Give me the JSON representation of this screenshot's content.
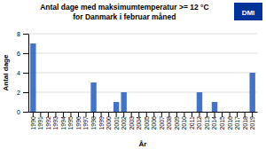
{
  "chart_data": {
    "type": "bar",
    "title": "Antal dage med maksimumtemperatur >= 12 °C",
    "subtitle": "for Danmark i februar måned",
    "x_label": "År",
    "y_label": "Antal dage",
    "categories": [
      "1990",
      "1991",
      "1992",
      "1993",
      "1994",
      "1995",
      "1996",
      "1997",
      "1998",
      "1999",
      "2000",
      "2001",
      "2002",
      "2003",
      "2004",
      "2005",
      "2006",
      "2007",
      "2008",
      "2009",
      "2010",
      "2011",
      "2012",
      "2013",
      "2014",
      "2015",
      "2016",
      "2017",
      "2018",
      "2019"
    ],
    "values": [
      7,
      0,
      0,
      0,
      0,
      0,
      0,
      0,
      3,
      0,
      0,
      1,
      2,
      0,
      0,
      0,
      0,
      0,
      0,
      0,
      0,
      0,
      2,
      0,
      1,
      0,
      0,
      0,
      0,
      4
    ],
    "color": "#4472C4",
    "ylim": [
      0,
      8
    ],
    "yticks": [
      0,
      2,
      4,
      6,
      8
    ],
    "grid": true,
    "annotations": [
      "DMI"
    ]
  }
}
